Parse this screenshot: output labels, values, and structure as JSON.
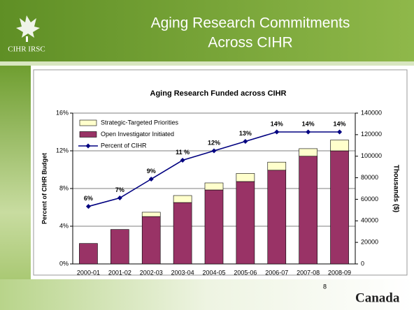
{
  "slide": {
    "logo": "CIHR IRSC",
    "title": [
      "Aging Research Commitments",
      "Across CIHR"
    ],
    "page_number": "8",
    "footer_logo": "Canada"
  },
  "chart_data": {
    "type": "bar",
    "title": "Aging Research Funded across CIHR",
    "categories": [
      "2000-01",
      "2001-02",
      "2002-03",
      "2003-04",
      "2004-05",
      "2005-06",
      "2006-07",
      "2007-08",
      "2008-09"
    ],
    "series": [
      {
        "name": "Strategic-Targeted Priorities",
        "color": "#ffffcc",
        "axis": "y2",
        "values": [
          0,
          0,
          4000,
          6500,
          6500,
          7500,
          7500,
          7000,
          10000
        ]
      },
      {
        "name": "Open Investigator Initiated",
        "color": "#993366",
        "axis": "y2",
        "values": [
          19000,
          32000,
          44000,
          57000,
          68700,
          76500,
          87000,
          100000,
          105000
        ]
      },
      {
        "name": "Percent of CIHR",
        "color": "#000080",
        "type": "line",
        "values": [
          6.1,
          7,
          9,
          11,
          12,
          13,
          14,
          14,
          14
        ],
        "value_labels": [
          "6%",
          "7%",
          "9%",
          "11 %",
          "12%",
          "13%",
          "14%",
          "14%",
          "14%"
        ]
      }
    ],
    "ylabel": "Percent of CIHR Budget",
    "y2label": "Thousands ($)",
    "ylim": [
      0,
      16
    ],
    "yticks": [
      {
        "value": 0,
        "label": "0%"
      },
      {
        "value": 4,
        "label": "4%"
      },
      {
        "value": 8,
        "label": "8%"
      },
      {
        "value": 12,
        "label": "12%"
      },
      {
        "value": 16,
        "label": "16%"
      }
    ],
    "y2lim": [
      0,
      140000
    ],
    "y2ticks": [
      0,
      20000,
      40000,
      60000,
      80000,
      100000,
      120000,
      140000
    ],
    "grid": true,
    "legend": "top-left"
  }
}
